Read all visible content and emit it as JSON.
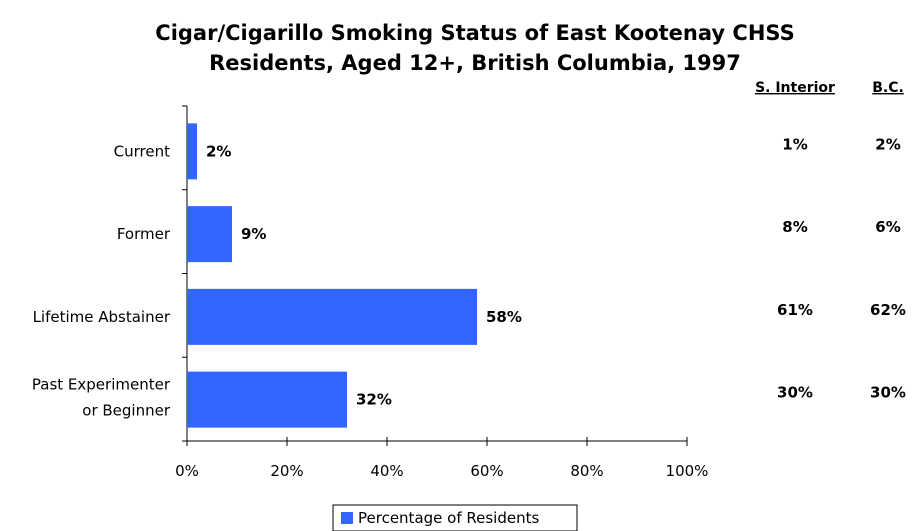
{
  "chart_data": {
    "type": "bar",
    "orientation": "horizontal",
    "title_lines": [
      "Cigar/Cigarillo Smoking Status of East Kootenay CHSS",
      "Residents, Aged 12+, British Columbia, 1997"
    ],
    "categories": [
      [
        "Current"
      ],
      [
        "Former"
      ],
      [
        "Lifetime Abstainer"
      ],
      [
        "Past Experimenter",
        "or Beginner"
      ]
    ],
    "series": [
      {
        "name": "Percentage of Residents",
        "values": [
          2,
          9,
          58,
          32
        ],
        "labels": [
          "2%",
          "9%",
          "58%",
          "32%"
        ],
        "color": "#3366ff"
      }
    ],
    "xlim": [
      0,
      100
    ],
    "xticks": [
      "0%",
      "20%",
      "40%",
      "60%",
      "80%",
      "100%"
    ],
    "grid": false,
    "legend_position": "bottom",
    "comparison_columns": [
      {
        "header": "S. Interior",
        "values": [
          "1%",
          "8%",
          "61%",
          "30%"
        ]
      },
      {
        "header": "B.C.",
        "values": [
          "2%",
          "6%",
          "62%",
          "30%"
        ]
      }
    ]
  }
}
